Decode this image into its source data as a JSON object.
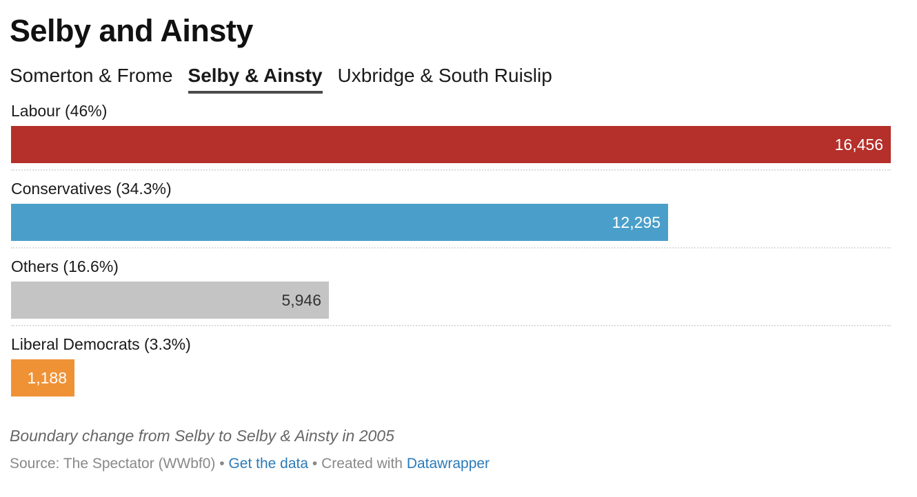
{
  "title": "Selby and Ainsty",
  "tabs": [
    {
      "label": "Somerton & Frome",
      "active": false
    },
    {
      "label": "Selby & Ainsty",
      "active": true
    },
    {
      "label": "Uxbridge & South Ruislip",
      "active": false
    }
  ],
  "chart_data": {
    "type": "bar",
    "orientation": "horizontal",
    "categories": [
      "Labour (46%)",
      "Conservatives (34.3%)",
      "Others (16.6%)",
      "Liberal Democrats (3.3%)"
    ],
    "values": [
      16456,
      12295,
      5946,
      1188
    ],
    "value_labels": [
      "16,456",
      "12,295",
      "5,946",
      "1,188"
    ],
    "colors": [
      "#b5302a",
      "#4a9fca",
      "#c4c4c4",
      "#ef9236"
    ],
    "label_colors": [
      "#ffffff",
      "#ffffff",
      "#333333",
      "#ffffff"
    ],
    "xlim": [
      0,
      16456
    ],
    "grid": false
  },
  "notes": "Boundary change from Selby to Selby & Ainsty in 2005",
  "footer": {
    "source": "Source: The Spectator (WWbf0)",
    "sep": "•",
    "get_data": "Get the data",
    "created_with": "Created with",
    "datawrapper": "Datawrapper"
  }
}
